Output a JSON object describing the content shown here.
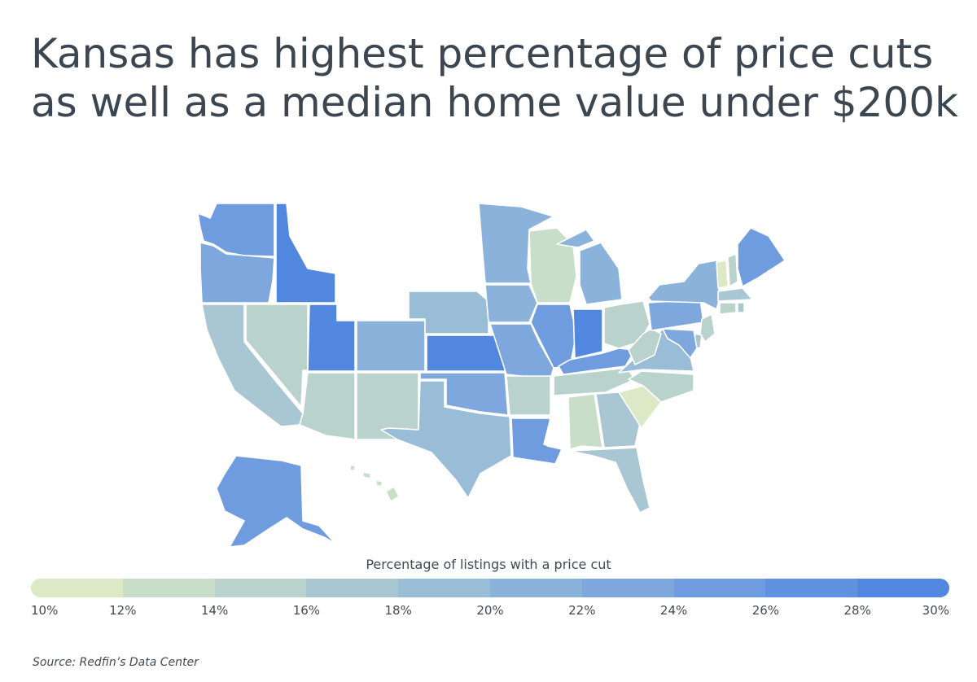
{
  "title": {
    "line1": "Kansas has highest percentage of price cuts",
    "line2": "as well as a median home value under $200k"
  },
  "legend": {
    "title": "Percentage of listings with a price cut",
    "ticks": [
      "10%",
      "12%",
      "14%",
      "16%",
      "18%",
      "20%",
      "22%",
      "24%",
      "26%",
      "28%",
      "30%"
    ],
    "colors": [
      "#dbe9c6",
      "#c9dec8",
      "#b9d2cc",
      "#a9c7d2",
      "#99bcd7",
      "#8bb2db",
      "#7da7dd",
      "#6f9cde",
      "#6192df",
      "#5287e0"
    ]
  },
  "source": "Source:  Redfin’s Data Center",
  "chart_data": {
    "type": "choropleth",
    "metric": "Percentage of listings with a price cut",
    "scale": [
      10,
      30
    ],
    "no_data_color": "#ffffff",
    "states": {
      "WA": 24,
      "OR": 22,
      "CA": 16,
      "NV": 15,
      "ID": 28,
      "MT": null,
      "WY": null,
      "UT": 28,
      "AZ": 15,
      "CO": 20,
      "NM": 15,
      "ND": null,
      "SD": null,
      "NE": 19,
      "KS": 29,
      "OK": 22,
      "TX": 19,
      "MN": 20,
      "IA": 20,
      "MO": 23,
      "AR": 14,
      "LA": 25,
      "WI": 13,
      "IL": 24,
      "MI": 21,
      "IN": 29,
      "OH": 15,
      "KY": 24,
      "TN": 15,
      "MS": null,
      "AL": 13,
      "GA": 17,
      "FL": 16,
      "SC": 11,
      "NC": 14,
      "VA": 18,
      "WV": 14,
      "PA": 22,
      "NY": 21,
      "VT": 11,
      "NH": 15,
      "ME": 25,
      "MA": 16,
      "CT": 15,
      "RI": 16,
      "NJ": 15,
      "DE": 17,
      "MD": 23,
      "AK": 24,
      "HI": 12
    }
  }
}
